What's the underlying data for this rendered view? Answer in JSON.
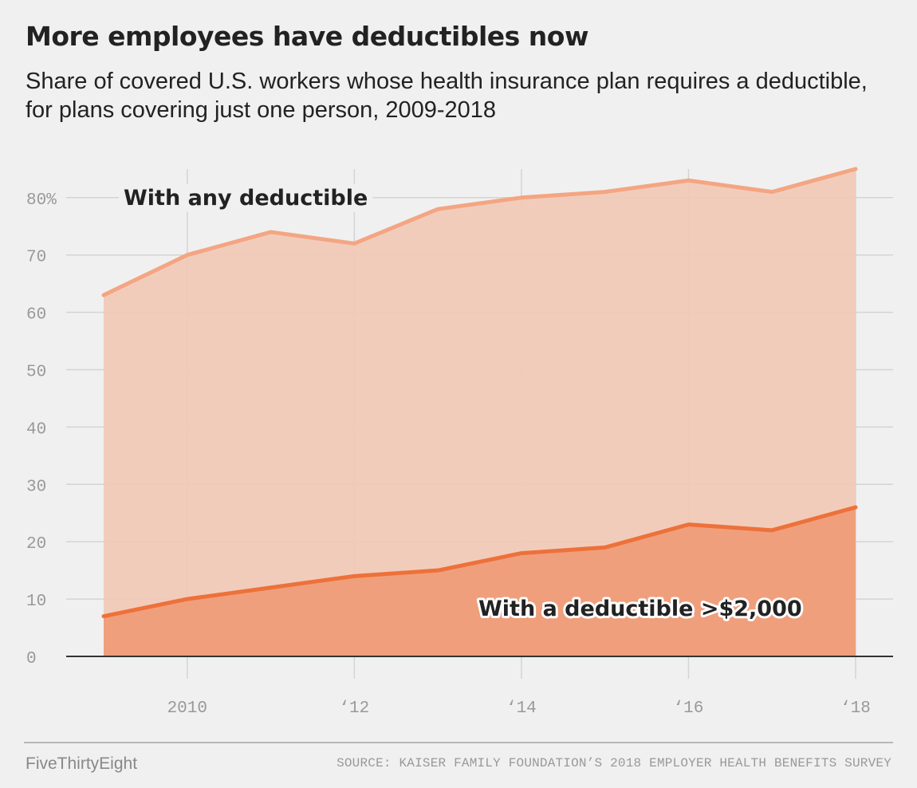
{
  "header": {
    "title": "More employees have deductibles now",
    "subtitle": "Share of covered U.S. workers whose health insurance plan requires a deductible, for plans covering just one person, 2009-2018"
  },
  "footer": {
    "brand": "FiveThirtyEight",
    "source": "SOURCE: KAISER FAMILY FOUNDATION’S 2018 EMPLOYER HEALTH BENEFITS SURVEY"
  },
  "colors": {
    "background": "#f0f0f0",
    "any_deductible_line": "#f4a582",
    "any_deductible_fill": "#f1c9b7",
    "high_deductible_line": "#ed713a",
    "high_deductible_fill": "#ef9c78",
    "grid": "#d4d4d4",
    "axis": "#333333"
  },
  "chart_data": {
    "type": "area",
    "x": [
      2009,
      2010,
      2011,
      2012,
      2013,
      2014,
      2015,
      2016,
      2017,
      2018
    ],
    "xlim": [
      2009,
      2018
    ],
    "xticks": [
      2010,
      2012,
      2014,
      2016,
      2018
    ],
    "xtick_labels": [
      "2010",
      "‘12",
      "‘14",
      "‘16",
      "‘18"
    ],
    "ylim": [
      0,
      85
    ],
    "yticks": [
      0,
      10,
      20,
      30,
      40,
      50,
      60,
      70,
      80
    ],
    "ytick_labels": [
      "0",
      "10",
      "20",
      "30",
      "40",
      "50",
      "60",
      "70",
      "80%"
    ],
    "grid": true,
    "series": [
      {
        "name": "With any deductible",
        "values": [
          63,
          70,
          74,
          72,
          78,
          80,
          81,
          83,
          81,
          85
        ]
      },
      {
        "name": "With a deductible >$2,000",
        "values": [
          7,
          10,
          12,
          14,
          15,
          18,
          19,
          23,
          22,
          26
        ]
      }
    ]
  }
}
